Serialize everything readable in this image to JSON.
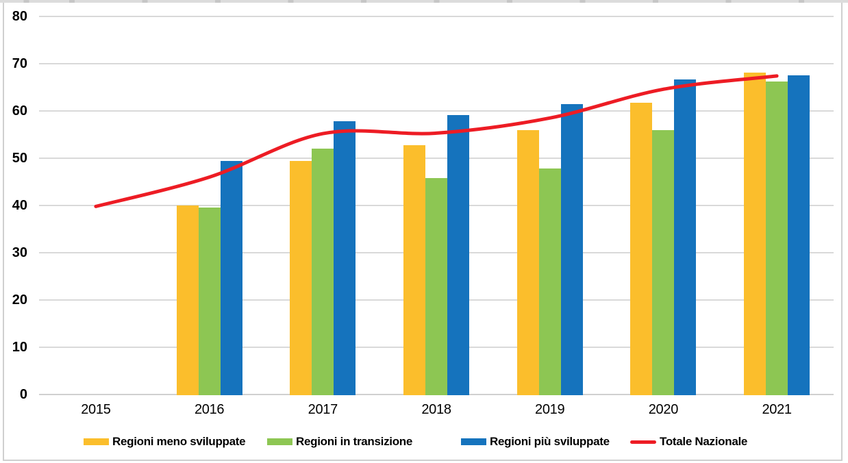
{
  "chart_data": {
    "type": "combo-bar-line",
    "title": "",
    "xlabel": "",
    "ylabel": "",
    "categories": [
      "2015",
      "2016",
      "2017",
      "2018",
      "2019",
      "2020",
      "2021"
    ],
    "series": [
      {
        "name": "Regioni meno sviluppate",
        "type": "bar",
        "color": "#FBBE2C",
        "values": [
          null,
          40.0,
          49.4,
          52.7,
          56.0,
          61.8,
          68.1
        ]
      },
      {
        "name": "Regioni in transizione",
        "type": "bar",
        "color": "#8DC653",
        "values": [
          null,
          39.6,
          52.0,
          45.8,
          47.8,
          55.9,
          66.2
        ]
      },
      {
        "name": "Regioni più sviluppate",
        "type": "bar",
        "color": "#1573BD",
        "values": [
          null,
          49.4,
          57.9,
          59.1,
          61.4,
          66.7,
          67.6
        ]
      },
      {
        "name": "Totale Nazionale",
        "type": "line",
        "color": "#ED1C24",
        "values": [
          39.8,
          46.0,
          55.2,
          55.3,
          58.5,
          64.6,
          67.4
        ]
      }
    ],
    "ylim": [
      0,
      80
    ],
    "yticks": [
      0,
      10,
      20,
      30,
      40,
      50,
      60,
      70,
      80
    ],
    "grid": true,
    "line_smoothing": true,
    "legend_position": "bottom"
  },
  "colors": {
    "background": "#FFFFFF",
    "gridline": "#D9D9D9",
    "baseline": "#D0D0D0",
    "frame_border": "#CFCFCF",
    "text": "#000000"
  }
}
